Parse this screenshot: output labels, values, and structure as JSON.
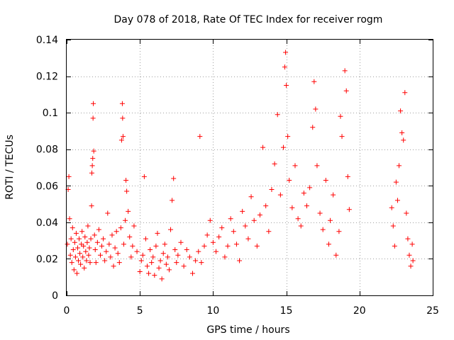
{
  "chart_data": {
    "type": "scatter",
    "title": "Day 078 of 2018, Rate Of TEC Index for receiver rogm",
    "xlabel": "GPS time / hours",
    "ylabel": "ROTI / TECUs",
    "xlim": [
      0,
      25
    ],
    "ylim": [
      0,
      0.14
    ],
    "xticks": [
      0,
      5,
      10,
      15,
      20,
      25
    ],
    "xtick_labels": [
      "0",
      "5",
      "10",
      "15",
      "20",
      "25"
    ],
    "yticks": [
      0,
      0.02,
      0.04,
      0.06,
      0.08,
      0.1,
      0.12,
      0.14
    ],
    "ytick_labels": [
      "0",
      "0.02",
      "0.04",
      "0.06",
      "0.08",
      "0.1",
      "0.12",
      "0.14"
    ],
    "grid": true,
    "marker": "plus",
    "color": "#ff0000",
    "series": [
      {
        "name": "ROTI",
        "points": [
          [
            0.05,
            0.028
          ],
          [
            0.1,
            0.058
          ],
          [
            0.15,
            0.065
          ],
          [
            0.2,
            0.042
          ],
          [
            0.25,
            0.022
          ],
          [
            0.3,
            0.031
          ],
          [
            0.35,
            0.018
          ],
          [
            0.4,
            0.037
          ],
          [
            0.45,
            0.025
          ],
          [
            0.5,
            0.014
          ],
          [
            0.55,
            0.029
          ],
          [
            0.6,
            0.021
          ],
          [
            0.65,
            0.034
          ],
          [
            0.7,
            0.012
          ],
          [
            0.75,
            0.026
          ],
          [
            0.8,
            0.019
          ],
          [
            0.85,
            0.031
          ],
          [
            0.9,
            0.023
          ],
          [
            0.95,
            0.017
          ],
          [
            1.0,
            0.028
          ],
          [
            1.05,
            0.035
          ],
          [
            1.1,
            0.021
          ],
          [
            1.15,
            0.027
          ],
          [
            1.2,
            0.015
          ],
          [
            1.25,
            0.032
          ],
          [
            1.3,
            0.024
          ],
          [
            1.35,
            0.019
          ],
          [
            1.4,
            0.029
          ],
          [
            1.45,
            0.038
          ],
          [
            1.5,
            0.022
          ],
          [
            1.55,
            0.026
          ],
          [
            1.6,
            0.018
          ],
          [
            1.65,
            0.031
          ],
          [
            1.7,
            0.049
          ],
          [
            1.72,
            0.067
          ],
          [
            1.75,
            0.071
          ],
          [
            1.78,
            0.075
          ],
          [
            1.8,
            0.097
          ],
          [
            1.82,
            0.105
          ],
          [
            1.85,
            0.079
          ],
          [
            1.9,
            0.033
          ],
          [
            1.95,
            0.025
          ],
          [
            2.0,
            0.018
          ],
          [
            2.1,
            0.029
          ],
          [
            2.2,
            0.036
          ],
          [
            2.3,
            0.022
          ],
          [
            2.4,
            0.027
          ],
          [
            2.5,
            0.031
          ],
          [
            2.6,
            0.019
          ],
          [
            2.7,
            0.024
          ],
          [
            2.8,
            0.045
          ],
          [
            2.9,
            0.028
          ],
          [
            3.0,
            0.021
          ],
          [
            3.1,
            0.033
          ],
          [
            3.2,
            0.016
          ],
          [
            3.3,
            0.026
          ],
          [
            3.4,
            0.035
          ],
          [
            3.5,
            0.023
          ],
          [
            3.6,
            0.018
          ],
          [
            3.7,
            0.037
          ],
          [
            3.75,
            0.085
          ],
          [
            3.8,
            0.105
          ],
          [
            3.82,
            0.097
          ],
          [
            3.85,
            0.087
          ],
          [
            3.9,
            0.028
          ],
          [
            4.0,
            0.041
          ],
          [
            4.05,
            0.063
          ],
          [
            4.1,
            0.057
          ],
          [
            4.2,
            0.046
          ],
          [
            4.3,
            0.032
          ],
          [
            4.4,
            0.021
          ],
          [
            4.5,
            0.027
          ],
          [
            4.6,
            0.038
          ],
          [
            4.8,
            0.024
          ],
          [
            5.0,
            0.013
          ],
          [
            5.1,
            0.019
          ],
          [
            5.2,
            0.022
          ],
          [
            5.3,
            0.065
          ],
          [
            5.4,
            0.031
          ],
          [
            5.5,
            0.016
          ],
          [
            5.6,
            0.012
          ],
          [
            5.7,
            0.025
          ],
          [
            5.8,
            0.018
          ],
          [
            5.9,
            0.021
          ],
          [
            6.0,
            0.011
          ],
          [
            6.1,
            0.027
          ],
          [
            6.2,
            0.034
          ],
          [
            6.3,
            0.015
          ],
          [
            6.4,
            0.019
          ],
          [
            6.5,
            0.009
          ],
          [
            6.6,
            0.023
          ],
          [
            6.7,
            0.028
          ],
          [
            6.8,
            0.017
          ],
          [
            6.9,
            0.021
          ],
          [
            7.0,
            0.014
          ],
          [
            7.1,
            0.036
          ],
          [
            7.2,
            0.052
          ],
          [
            7.3,
            0.064
          ],
          [
            7.4,
            0.025
          ],
          [
            7.5,
            0.018
          ],
          [
            7.6,
            0.022
          ],
          [
            7.8,
            0.029
          ],
          [
            8.0,
            0.016
          ],
          [
            8.2,
            0.025
          ],
          [
            8.4,
            0.021
          ],
          [
            8.6,
            0.012
          ],
          [
            8.8,
            0.019
          ],
          [
            9.0,
            0.024
          ],
          [
            9.1,
            0.087
          ],
          [
            9.2,
            0.018
          ],
          [
            9.4,
            0.027
          ],
          [
            9.6,
            0.033
          ],
          [
            9.8,
            0.041
          ],
          [
            10.0,
            0.029
          ],
          [
            10.2,
            0.024
          ],
          [
            10.4,
            0.032
          ],
          [
            10.6,
            0.037
          ],
          [
            10.8,
            0.021
          ],
          [
            11.0,
            0.027
          ],
          [
            11.2,
            0.042
          ],
          [
            11.4,
            0.035
          ],
          [
            11.6,
            0.028
          ],
          [
            11.8,
            0.019
          ],
          [
            12.0,
            0.046
          ],
          [
            12.2,
            0.038
          ],
          [
            12.4,
            0.031
          ],
          [
            12.6,
            0.054
          ],
          [
            12.8,
            0.041
          ],
          [
            13.0,
            0.027
          ],
          [
            13.2,
            0.044
          ],
          [
            13.4,
            0.081
          ],
          [
            13.6,
            0.049
          ],
          [
            13.8,
            0.035
          ],
          [
            14.0,
            0.058
          ],
          [
            14.2,
            0.072
          ],
          [
            14.4,
            0.099
          ],
          [
            14.6,
            0.055
          ],
          [
            14.8,
            0.081
          ],
          [
            14.9,
            0.125
          ],
          [
            14.95,
            0.133
          ],
          [
            15.0,
            0.115
          ],
          [
            15.1,
            0.087
          ],
          [
            15.2,
            0.063
          ],
          [
            15.4,
            0.048
          ],
          [
            15.6,
            0.071
          ],
          [
            15.8,
            0.042
          ],
          [
            16.0,
            0.038
          ],
          [
            16.2,
            0.056
          ],
          [
            16.4,
            0.049
          ],
          [
            16.6,
            0.059
          ],
          [
            16.8,
            0.092
          ],
          [
            16.9,
            0.117
          ],
          [
            17.0,
            0.102
          ],
          [
            17.1,
            0.071
          ],
          [
            17.3,
            0.045
          ],
          [
            17.5,
            0.036
          ],
          [
            17.7,
            0.063
          ],
          [
            17.9,
            0.028
          ],
          [
            18.0,
            0.041
          ],
          [
            18.2,
            0.055
          ],
          [
            18.4,
            0.022
          ],
          [
            18.6,
            0.035
          ],
          [
            18.7,
            0.098
          ],
          [
            18.8,
            0.087
          ],
          [
            19.0,
            0.123
          ],
          [
            19.1,
            0.112
          ],
          [
            19.2,
            0.065
          ],
          [
            19.3,
            0.047
          ],
          [
            22.2,
            0.048
          ],
          [
            22.3,
            0.038
          ],
          [
            22.4,
            0.027
          ],
          [
            22.5,
            0.062
          ],
          [
            22.6,
            0.052
          ],
          [
            22.7,
            0.071
          ],
          [
            22.8,
            0.101
          ],
          [
            22.9,
            0.089
          ],
          [
            23.0,
            0.085
          ],
          [
            23.1,
            0.111
          ],
          [
            23.2,
            0.045
          ],
          [
            23.3,
            0.031
          ],
          [
            23.4,
            0.022
          ],
          [
            23.5,
            0.016
          ],
          [
            23.6,
            0.028
          ],
          [
            23.65,
            0.019
          ]
        ]
      }
    ]
  }
}
